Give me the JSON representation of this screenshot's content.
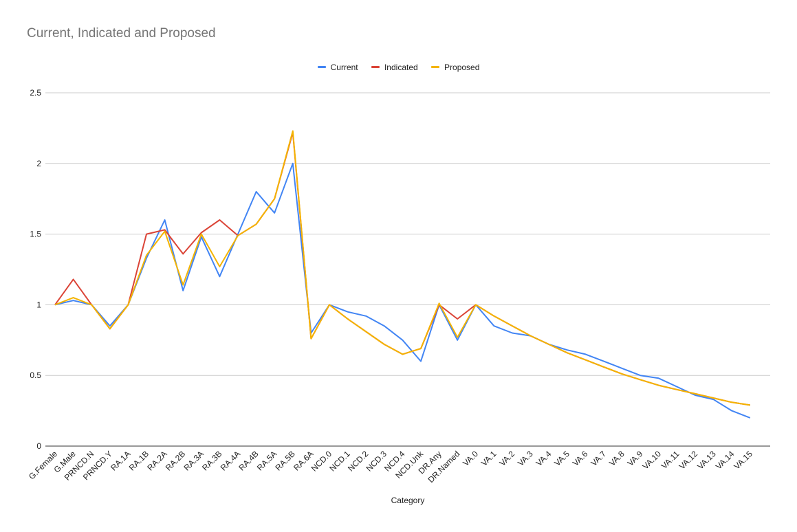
{
  "chart_data": {
    "type": "line",
    "title": "Current, Indicated and Proposed",
    "xlabel": "Category",
    "ylabel": "",
    "ylim": [
      0,
      2.5
    ],
    "yticks": [
      "0",
      "0.5",
      "1",
      "1.5",
      "2",
      "2.5"
    ],
    "grid": true,
    "legend_position": "top-center",
    "categories": [
      "G.Female",
      "G.Male",
      "PRNCD.N",
      "PRNCD.Y",
      "RA.1A",
      "RA.1B",
      "RA.2A",
      "RA.2B",
      "RA.3A",
      "RA.3B",
      "RA.4A",
      "RA.4B",
      "RA.5A",
      "RA.5B",
      "RA.6A",
      "NCD.0",
      "NCD.1",
      "NCD.2",
      "NCD.3",
      "NCD.4",
      "NCD.Unk",
      "DR.Any",
      "DR.Named",
      "VA.0",
      "VA.1",
      "VA.2",
      "VA.3",
      "VA.4",
      "VA.5",
      "VA.6",
      "VA.7",
      "VA.8",
      "VA.9",
      "VA.10",
      "VA.11",
      "VA.12",
      "VA.13",
      "VA.14",
      "VA.15"
    ],
    "series": [
      {
        "name": "Current",
        "color": "#4285f4",
        "values": [
          1.0,
          1.03,
          1.0,
          0.85,
          1.0,
          1.33,
          1.6,
          1.1,
          1.48,
          1.2,
          1.5,
          1.8,
          1.65,
          2.0,
          0.8,
          1.0,
          0.95,
          0.92,
          0.85,
          0.75,
          0.6,
          1.0,
          0.75,
          1.0,
          0.85,
          0.8,
          0.78,
          0.72,
          0.68,
          0.65,
          0.6,
          0.55,
          0.5,
          0.48,
          0.42,
          0.36,
          0.33,
          0.25,
          0.2
        ]
      },
      {
        "name": "Indicated",
        "color": "#db4437",
        "values": [
          1.0,
          1.18,
          1.0,
          0.83,
          1.0,
          1.5,
          1.53,
          1.36,
          1.51,
          1.6,
          1.49,
          1.57,
          1.75,
          2.22,
          0.76,
          1.0,
          0.9,
          0.81,
          0.72,
          0.65,
          0.69,
          1.0,
          0.9,
          1.0,
          0.92,
          0.85,
          0.78,
          0.72,
          0.66,
          0.61,
          0.56,
          0.51,
          0.47,
          0.43,
          0.4,
          0.37,
          0.34,
          0.31,
          0.29
        ]
      },
      {
        "name": "Proposed",
        "color": "#f4b400",
        "values": [
          1.0,
          1.05,
          1.0,
          0.83,
          1.0,
          1.35,
          1.52,
          1.14,
          1.5,
          1.27,
          1.49,
          1.57,
          1.75,
          2.23,
          0.76,
          1.0,
          0.9,
          0.81,
          0.72,
          0.65,
          0.69,
          1.01,
          0.77,
          1.0,
          0.92,
          0.85,
          0.78,
          0.72,
          0.66,
          0.61,
          0.56,
          0.51,
          0.47,
          0.43,
          0.4,
          0.37,
          0.34,
          0.31,
          0.29
        ]
      }
    ]
  }
}
